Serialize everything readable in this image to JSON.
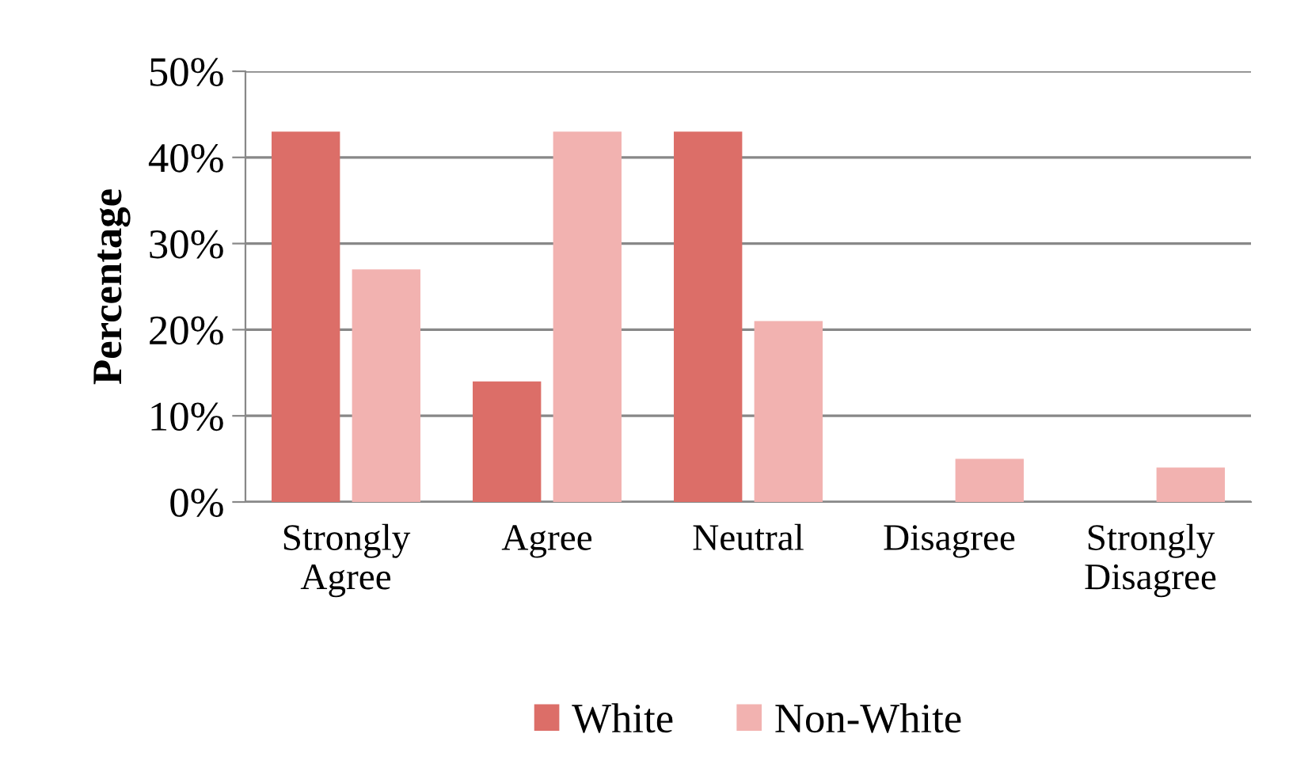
{
  "chart_data": {
    "type": "bar",
    "ylabel": "Percentage",
    "categories": [
      "Strongly\nAgree",
      "Agree",
      "Neutral",
      "Disagree",
      "Strongly\nDisagree"
    ],
    "series": [
      {
        "name": "White",
        "color": "#dc6e68",
        "values": [
          43,
          14,
          43,
          0,
          0
        ]
      },
      {
        "name": "Non-White",
        "color": "#f2b2b0",
        "values": [
          27,
          43,
          21,
          5,
          4
        ]
      }
    ],
    "ylim": [
      0,
      50
    ],
    "yticks": [
      {
        "value": 0,
        "label": "0%"
      },
      {
        "value": 10,
        "label": "10%"
      },
      {
        "value": 20,
        "label": "20%"
      },
      {
        "value": 30,
        "label": "30%"
      },
      {
        "value": 40,
        "label": "40%"
      },
      {
        "value": 50,
        "label": "50%"
      }
    ],
    "grid": "y",
    "legend": "bottom"
  }
}
